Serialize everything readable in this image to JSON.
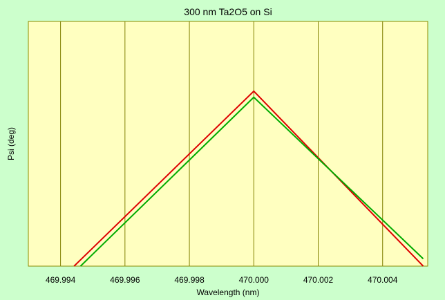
{
  "colors": {
    "page_background": "#ccffcc",
    "plot_background": "#ffffc0",
    "plot_border": "#8b8b00",
    "gridline": "#808000"
  },
  "chart_data": {
    "type": "line",
    "title": "300 nm Ta2O5 on Si",
    "xlabel": "Wavelength (nm)",
    "ylabel": "Psi (deg)",
    "xlim": [
      469.993,
      470.0054
    ],
    "ylim": [
      0,
      1
    ],
    "grid": true,
    "x_ticks": [
      "469.994",
      "469.996",
      "469.998",
      "470.000",
      "470.002",
      "470.004"
    ],
    "x_tick_values": [
      469.994,
      469.996,
      469.998,
      470.0,
      470.002,
      470.004
    ],
    "y_ticks": [],
    "series": [
      {
        "color": "#dd0000",
        "x": [
          469.99442,
          470.0,
          470.00526
        ],
        "y": [
          0.0,
          0.715,
          0.0
        ]
      },
      {
        "color": "#00aa00",
        "x": [
          469.99462,
          470.0,
          470.00526
        ],
        "y": [
          0.0,
          0.69,
          0.03
        ]
      }
    ]
  }
}
